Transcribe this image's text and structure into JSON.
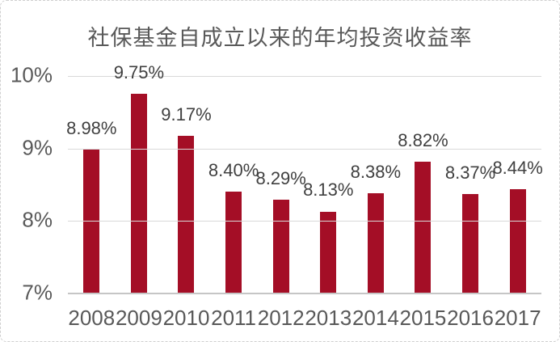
{
  "colors": {
    "bar": "#A40E26",
    "title_text": "#595959",
    "axis_text": "#595959",
    "data_label_text": "#404040",
    "gridline": "#D9D9D9",
    "axis_line": "#C6C6C6",
    "frame_border": "#CFCFCF",
    "background": "#FFFFFF"
  },
  "chart_data": {
    "type": "bar",
    "title": "社保基金自成立以来的年均投资收益率",
    "categories": [
      "2008",
      "2009",
      "2010",
      "2011",
      "2012",
      "2013",
      "2014",
      "2015",
      "2016",
      "2017"
    ],
    "values": [
      8.98,
      9.75,
      9.17,
      8.4,
      8.29,
      8.13,
      8.38,
      8.82,
      8.37,
      8.44
    ],
    "data_labels": [
      "8.98%",
      "9.75%",
      "9.17%",
      "8.40%",
      "8.29%",
      "8.13%",
      "8.38%",
      "8.82%",
      "8.37%",
      "8.44%"
    ],
    "xlabel": "",
    "ylabel": "",
    "y_ticks": [
      "10%",
      "9%",
      "8%",
      "7%"
    ],
    "ylim": [
      7,
      10
    ],
    "grid": true,
    "legend": false,
    "data_label_position": "outside-end"
  }
}
